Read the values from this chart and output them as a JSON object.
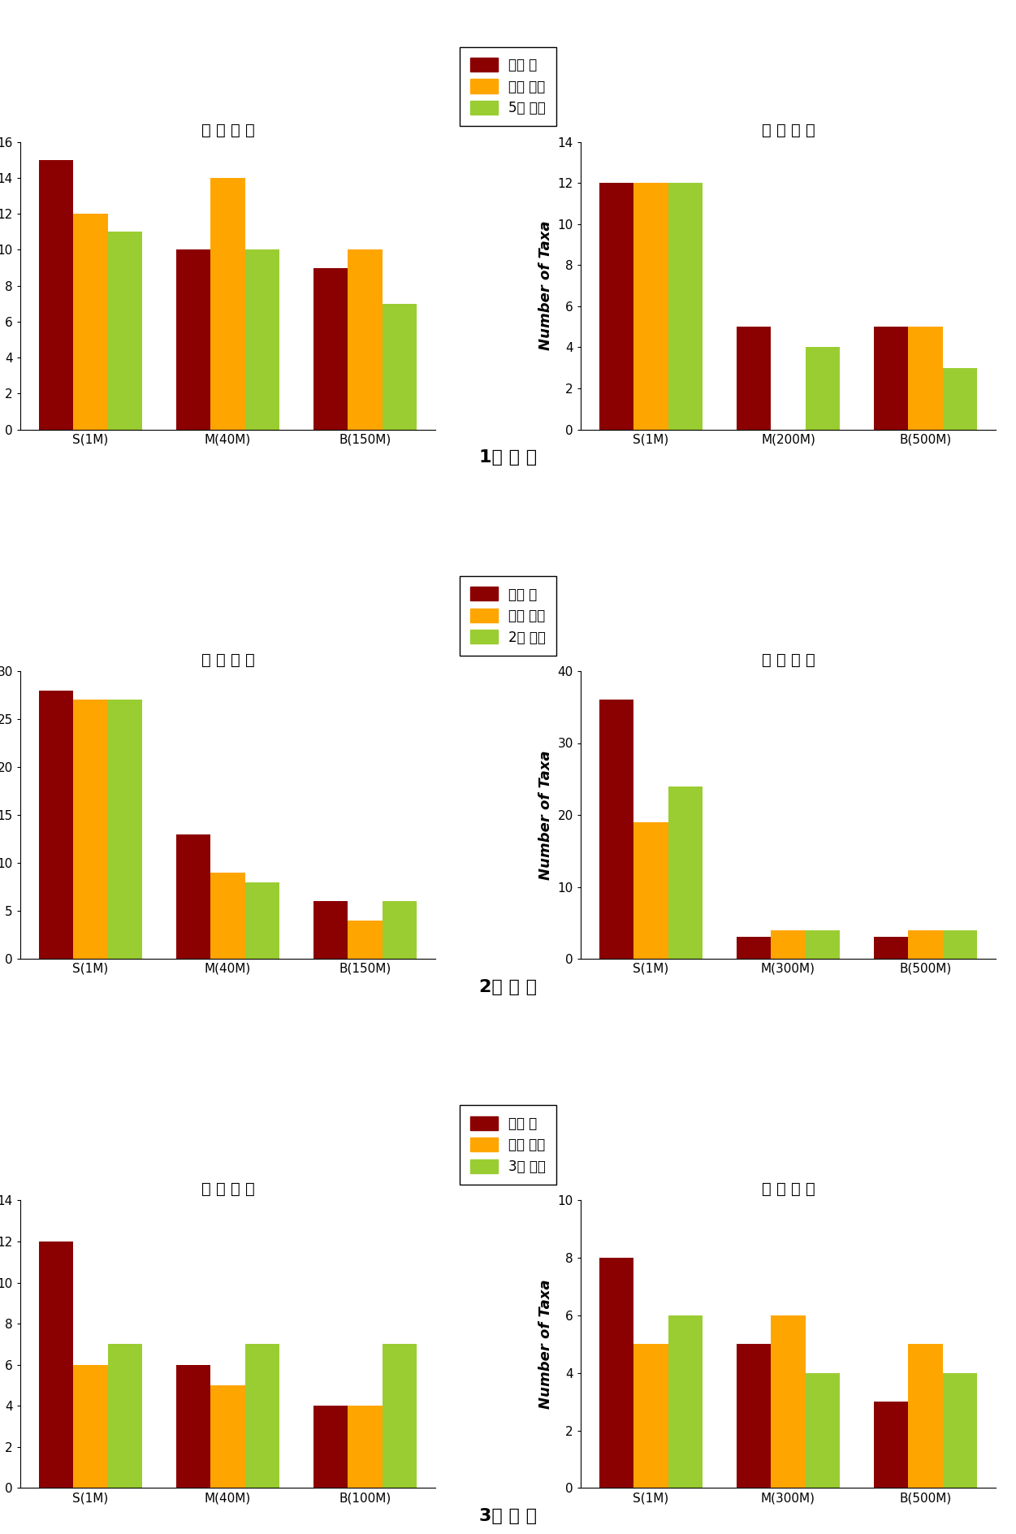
{
  "panels": [
    {
      "survey": "1싰 조 사",
      "legend_time": "5시 간후",
      "surface": {
        "title": "표 층 투 입",
        "categories": [
          "S(1M)",
          "M(40M)",
          "B(150M)"
        ],
        "ylim": [
          0,
          16
        ],
        "yticks": [
          0,
          2,
          4,
          6,
          8,
          10,
          12,
          14,
          16
        ],
        "before": [
          15,
          10,
          9
        ],
        "during": [
          12,
          14,
          10
        ],
        "after": [
          11,
          10,
          7
        ]
      },
      "deep": {
        "title": "심 층 투 입",
        "categories": [
          "S(1M)",
          "M(200M)",
          "B(500M)"
        ],
        "ylim": [
          0,
          14
        ],
        "yticks": [
          0,
          2,
          4,
          6,
          8,
          10,
          12,
          14
        ],
        "before": [
          12,
          5,
          5
        ],
        "during": [
          12,
          0,
          5
        ],
        "after": [
          12,
          4,
          3
        ]
      }
    },
    {
      "survey": "2싰 조 사",
      "legend_time": "2시 간후",
      "surface": {
        "title": "표 층 투 입",
        "categories": [
          "S(1M)",
          "M(40M)",
          "B(150M)"
        ],
        "ylim": [
          0,
          30
        ],
        "yticks": [
          0,
          5,
          10,
          15,
          20,
          25,
          30
        ],
        "before": [
          28,
          13,
          6
        ],
        "during": [
          27,
          9,
          4
        ],
        "after": [
          27,
          8,
          6
        ]
      },
      "deep": {
        "title": "심 층 투 입",
        "categories": [
          "S(1M)",
          "M(300M)",
          "B(500M)"
        ],
        "ylim": [
          0,
          40
        ],
        "yticks": [
          0,
          10,
          20,
          30,
          40
        ],
        "before": [
          36,
          3,
          3
        ],
        "during": [
          19,
          4,
          4
        ],
        "after": [
          24,
          4,
          4
        ]
      }
    },
    {
      "survey": "3싰 조 사",
      "legend_time": "3시 간후",
      "surface": {
        "title": "표 층 투 입",
        "categories": [
          "S(1M)",
          "M(40M)",
          "B(100M)"
        ],
        "ylim": [
          0,
          14
        ],
        "yticks": [
          0,
          2,
          4,
          6,
          8,
          10,
          12,
          14
        ],
        "before": [
          12,
          6,
          4
        ],
        "during": [
          6,
          5,
          4
        ],
        "after": [
          7,
          7,
          7
        ]
      },
      "deep": {
        "title": "심 층 투 입",
        "categories": [
          "S(1M)",
          "M(300M)",
          "B(500M)"
        ],
        "ylim": [
          0,
          10
        ],
        "yticks": [
          0,
          2,
          4,
          6,
          8,
          10
        ],
        "before": [
          8,
          5,
          3
        ],
        "during": [
          5,
          6,
          5
        ],
        "after": [
          6,
          4,
          4
        ]
      }
    }
  ],
  "colors": {
    "before": "#8B0000",
    "during": "#FFA500",
    "after": "#9ACD32"
  },
  "legend_labels": [
    "투입 전",
    "투입 직후"
  ],
  "ylabel": "Number of Taxa",
  "bar_width": 0.25,
  "title_fontsize": 14,
  "tick_fontsize": 11,
  "label_fontsize": 13,
  "survey_fontsize": 16,
  "legend_fontsize": 12
}
